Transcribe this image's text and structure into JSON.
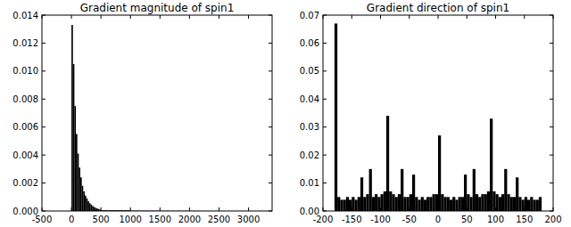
{
  "chart_data": [
    {
      "type": "histogram",
      "title": "Gradient magnitude of spin1",
      "color": "#000000",
      "bins": [
        0,
        25,
        50,
        75,
        100,
        125,
        150,
        175,
        200,
        225,
        250,
        275,
        300,
        325,
        350,
        375,
        400,
        425,
        450,
        475,
        500,
        1000,
        1500,
        2000,
        2500,
        3300
      ],
      "values": [
        0.0133,
        0.0105,
        0.0075,
        0.0055,
        0.0041,
        0.0031,
        0.0024,
        0.0018,
        0.0014,
        0.0011,
        0.0009,
        0.0007,
        0.00055,
        0.00045,
        0.00035,
        0.00028,
        0.00022,
        0.00018,
        0.00014,
        0.00011,
        5e-05,
        2e-05,
        1e-05,
        5e-06,
        3e-06
      ],
      "xlim": [
        -500,
        3400
      ],
      "xticks": [
        -500,
        0,
        500,
        1000,
        1500,
        2000,
        2500,
        3000
      ],
      "ylim": [
        0,
        0.014
      ],
      "yticks": [
        {
          "value": 0,
          "label": "0.000"
        },
        {
          "value": 0.002,
          "label": "0.002"
        },
        {
          "value": 0.004,
          "label": "0.004"
        },
        {
          "value": 0.006,
          "label": "0.006"
        },
        {
          "value": 0.008,
          "label": "0.008"
        },
        {
          "value": 0.01,
          "label": "0.010"
        },
        {
          "value": 0.012,
          "label": "0.012"
        },
        {
          "value": 0.014,
          "label": "0.014"
        }
      ]
    },
    {
      "type": "histogram",
      "title": "Gradient direction of spin1",
      "color": "#000000",
      "bins": [
        -180,
        -175,
        -170,
        -165,
        -160,
        -155,
        -150,
        -145,
        -140,
        -135,
        -130,
        -125,
        -120,
        -115,
        -110,
        -105,
        -100,
        -95,
        -90,
        -85,
        -80,
        -75,
        -70,
        -65,
        -60,
        -55,
        -50,
        -45,
        -40,
        -35,
        -30,
        -25,
        -20,
        -15,
        -10,
        -5,
        0,
        5,
        10,
        15,
        20,
        25,
        30,
        35,
        40,
        45,
        50,
        55,
        60,
        65,
        70,
        75,
        80,
        85,
        90,
        95,
        100,
        105,
        110,
        115,
        120,
        125,
        130,
        135,
        140,
        145,
        150,
        155,
        160,
        165,
        170,
        175,
        180
      ],
      "values": [
        0.067,
        0.005,
        0.004,
        0.004,
        0.005,
        0.004,
        0.005,
        0.004,
        0.005,
        0.012,
        0.005,
        0.006,
        0.015,
        0.005,
        0.006,
        0.005,
        0.006,
        0.007,
        0.034,
        0.007,
        0.006,
        0.005,
        0.006,
        0.015,
        0.005,
        0.005,
        0.006,
        0.013,
        0.005,
        0.004,
        0.005,
        0.004,
        0.005,
        0.005,
        0.006,
        0.006,
        0.027,
        0.006,
        0.005,
        0.005,
        0.004,
        0.005,
        0.004,
        0.005,
        0.005,
        0.013,
        0.006,
        0.005,
        0.015,
        0.006,
        0.005,
        0.006,
        0.006,
        0.007,
        0.033,
        0.007,
        0.006,
        0.005,
        0.006,
        0.015,
        0.006,
        0.005,
        0.005,
        0.012,
        0.005,
        0.004,
        0.005,
        0.004,
        0.005,
        0.004,
        0.004,
        0.005
      ],
      "xlim": [
        -200,
        200
      ],
      "xticks": [
        -200,
        -150,
        -100,
        -50,
        0,
        50,
        100,
        150,
        200
      ],
      "ylim": [
        0,
        0.07
      ],
      "yticks": [
        {
          "value": 0,
          "label": "0.00"
        },
        {
          "value": 0.01,
          "label": "0.01"
        },
        {
          "value": 0.02,
          "label": "0.02"
        },
        {
          "value": 0.03,
          "label": "0.03"
        },
        {
          "value": 0.04,
          "label": "0.04"
        },
        {
          "value": 0.05,
          "label": "0.05"
        },
        {
          "value": 0.06,
          "label": "0.06"
        },
        {
          "value": 0.07,
          "label": "0.07"
        }
      ]
    }
  ]
}
